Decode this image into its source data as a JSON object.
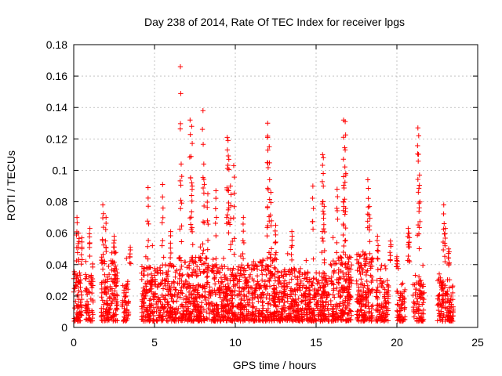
{
  "chart_data": {
    "type": "scatter",
    "title": "Day 238 of 2014, Rate Of TEC Index for receiver lpgs",
    "xlabel": "GPS time / hours",
    "ylabel": "ROTI / TECUs",
    "xlim": [
      0,
      25
    ],
    "ylim": [
      0,
      0.18
    ],
    "xticks": [
      0,
      5,
      10,
      15,
      20,
      25
    ],
    "xtick_labels": [
      "0",
      "5",
      "10",
      "15",
      "20",
      "25"
    ],
    "yticks": [
      0,
      0.02,
      0.04,
      0.06,
      0.08,
      0.1,
      0.12,
      0.14,
      0.16,
      0.18
    ],
    "ytick_labels": [
      "0",
      "0.02",
      "0.04",
      "0.06",
      "0.08",
      "0.1",
      "0.12",
      "0.14",
      "0.16",
      "0.18"
    ],
    "grid": true,
    "marker": "+",
    "color": "#ff0000",
    "clusters": [
      {
        "x0": 0.0,
        "x1": 0.5,
        "base_max": 0.038,
        "n": 70
      },
      {
        "x0": 0.7,
        "x1": 1.2,
        "base_max": 0.035,
        "n": 60
      },
      {
        "x0": 1.7,
        "x1": 2.7,
        "base_max": 0.045,
        "n": 150
      },
      {
        "x0": 3.0,
        "x1": 3.4,
        "base_max": 0.03,
        "n": 50
      },
      {
        "x0": 4.2,
        "x1": 6.5,
        "base_max": 0.04,
        "n": 300
      },
      {
        "x0": 6.5,
        "x1": 8.5,
        "base_max": 0.045,
        "n": 280
      },
      {
        "x0": 8.5,
        "x1": 11.0,
        "base_max": 0.04,
        "n": 340
      },
      {
        "x0": 11.0,
        "x1": 12.5,
        "base_max": 0.045,
        "n": 220
      },
      {
        "x0": 12.5,
        "x1": 14.0,
        "base_max": 0.038,
        "n": 200
      },
      {
        "x0": 14.0,
        "x1": 15.8,
        "base_max": 0.035,
        "n": 250
      },
      {
        "x0": 15.9,
        "x1": 17.2,
        "base_max": 0.045,
        "n": 200
      },
      {
        "x0": 17.5,
        "x1": 18.5,
        "base_max": 0.05,
        "n": 160
      },
      {
        "x0": 18.7,
        "x1": 19.5,
        "base_max": 0.03,
        "n": 100
      },
      {
        "x0": 20.0,
        "x1": 20.5,
        "base_max": 0.025,
        "n": 60
      },
      {
        "x0": 21.0,
        "x1": 21.7,
        "base_max": 0.03,
        "n": 80
      },
      {
        "x0": 22.5,
        "x1": 23.5,
        "base_max": 0.032,
        "n": 120
      }
    ],
    "peaks": [
      {
        "x": 0.2,
        "y": 0.07
      },
      {
        "x": 0.3,
        "y": 0.06
      },
      {
        "x": 0.5,
        "y": 0.057
      },
      {
        "x": 1.0,
        "y": 0.063
      },
      {
        "x": 1.8,
        "y": 0.078
      },
      {
        "x": 2.0,
        "y": 0.07
      },
      {
        "x": 2.5,
        "y": 0.058
      },
      {
        "x": 3.5,
        "y": 0.051
      },
      {
        "x": 4.6,
        "y": 0.089
      },
      {
        "x": 5.5,
        "y": 0.091
      },
      {
        "x": 6.0,
        "y": 0.061
      },
      {
        "x": 6.6,
        "y": 0.166
      },
      {
        "x": 6.65,
        "y": 0.104
      },
      {
        "x": 7.2,
        "y": 0.132
      },
      {
        "x": 7.3,
        "y": 0.128
      },
      {
        "x": 7.3,
        "y": 0.092
      },
      {
        "x": 8.0,
        "y": 0.138
      },
      {
        "x": 8.05,
        "y": 0.104
      },
      {
        "x": 8.3,
        "y": 0.085
      },
      {
        "x": 8.8,
        "y": 0.087
      },
      {
        "x": 9.5,
        "y": 0.121
      },
      {
        "x": 9.55,
        "y": 0.119
      },
      {
        "x": 9.6,
        "y": 0.107
      },
      {
        "x": 9.9,
        "y": 0.103
      },
      {
        "x": 9.7,
        "y": 0.09
      },
      {
        "x": 10.5,
        "y": 0.07
      },
      {
        "x": 12.0,
        "y": 0.13
      },
      {
        "x": 12.0,
        "y": 0.121
      },
      {
        "x": 12.1,
        "y": 0.115
      },
      {
        "x": 12.2,
        "y": 0.086
      },
      {
        "x": 12.5,
        "y": 0.065
      },
      {
        "x": 13.5,
        "y": 0.061
      },
      {
        "x": 14.8,
        "y": 0.09
      },
      {
        "x": 15.4,
        "y": 0.11
      },
      {
        "x": 15.45,
        "y": 0.108
      },
      {
        "x": 15.5,
        "y": 0.077
      },
      {
        "x": 16.3,
        "y": 0.088
      },
      {
        "x": 16.7,
        "y": 0.132
      },
      {
        "x": 16.8,
        "y": 0.131
      },
      {
        "x": 16.8,
        "y": 0.113
      },
      {
        "x": 16.7,
        "y": 0.096
      },
      {
        "x": 18.2,
        "y": 0.094
      },
      {
        "x": 18.3,
        "y": 0.077
      },
      {
        "x": 18.8,
        "y": 0.058
      },
      {
        "x": 19.6,
        "y": 0.055
      },
      {
        "x": 20.0,
        "y": 0.045
      },
      {
        "x": 20.7,
        "y": 0.063
      },
      {
        "x": 20.75,
        "y": 0.06
      },
      {
        "x": 21.3,
        "y": 0.127
      },
      {
        "x": 21.35,
        "y": 0.122
      },
      {
        "x": 21.4,
        "y": 0.097
      },
      {
        "x": 22.9,
        "y": 0.078
      },
      {
        "x": 23.0,
        "y": 0.063
      },
      {
        "x": 23.2,
        "y": 0.05
      }
    ]
  }
}
